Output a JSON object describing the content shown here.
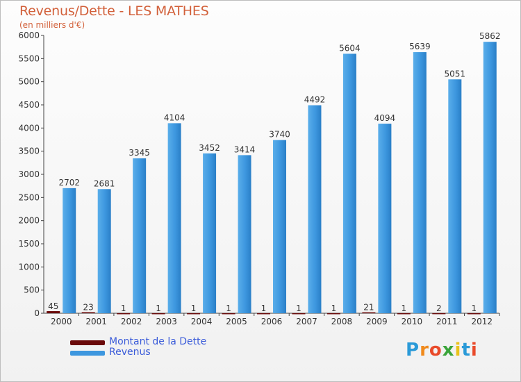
{
  "page": {
    "title": "Revenus/Dette - LES MATHES",
    "subtitle": "(en milliers d'€)"
  },
  "chart_data": {
    "type": "bar",
    "title": "Revenus/Dette - LES MATHES",
    "subtitle": "(en milliers d'€)",
    "categories": [
      "2000",
      "2001",
      "2002",
      "2003",
      "2004",
      "2005",
      "2006",
      "2007",
      "2008",
      "2009",
      "2010",
      "2011",
      "2012"
    ],
    "series": [
      {
        "name": "Montant de la Dette",
        "color": "#6b0a0a",
        "values": [
          45,
          23,
          1,
          1,
          1,
          1,
          1,
          1,
          1,
          21,
          1,
          2,
          1
        ]
      },
      {
        "name": "Revenus",
        "color": "#3d97df",
        "values": [
          2702,
          2681,
          3345,
          4104,
          3452,
          3414,
          3740,
          4492,
          5604,
          4094,
          5639,
          5051,
          5862
        ]
      }
    ],
    "ylim": [
      0,
      6000
    ],
    "yticks": [
      0,
      500,
      1000,
      1500,
      2000,
      2500,
      3000,
      3500,
      4000,
      4500,
      5000,
      5500,
      6000
    ],
    "grid": false,
    "legend_position": "bottom-left"
  },
  "legend": {
    "items": [
      {
        "label": "Montant de la Dette",
        "color": "#6b0a0a"
      },
      {
        "label": "Revenus",
        "color": "#3d97df"
      }
    ]
  },
  "logo": {
    "text": "Proxiti",
    "letters": [
      "P",
      "r",
      "o",
      "x",
      "i",
      "t",
      "i"
    ],
    "colors": [
      "#2a9ad8",
      "#f08a1c",
      "#e94a2a",
      "#3aa43a",
      "#e9c21c",
      "#2a9ad8",
      "#e94a2a"
    ]
  }
}
